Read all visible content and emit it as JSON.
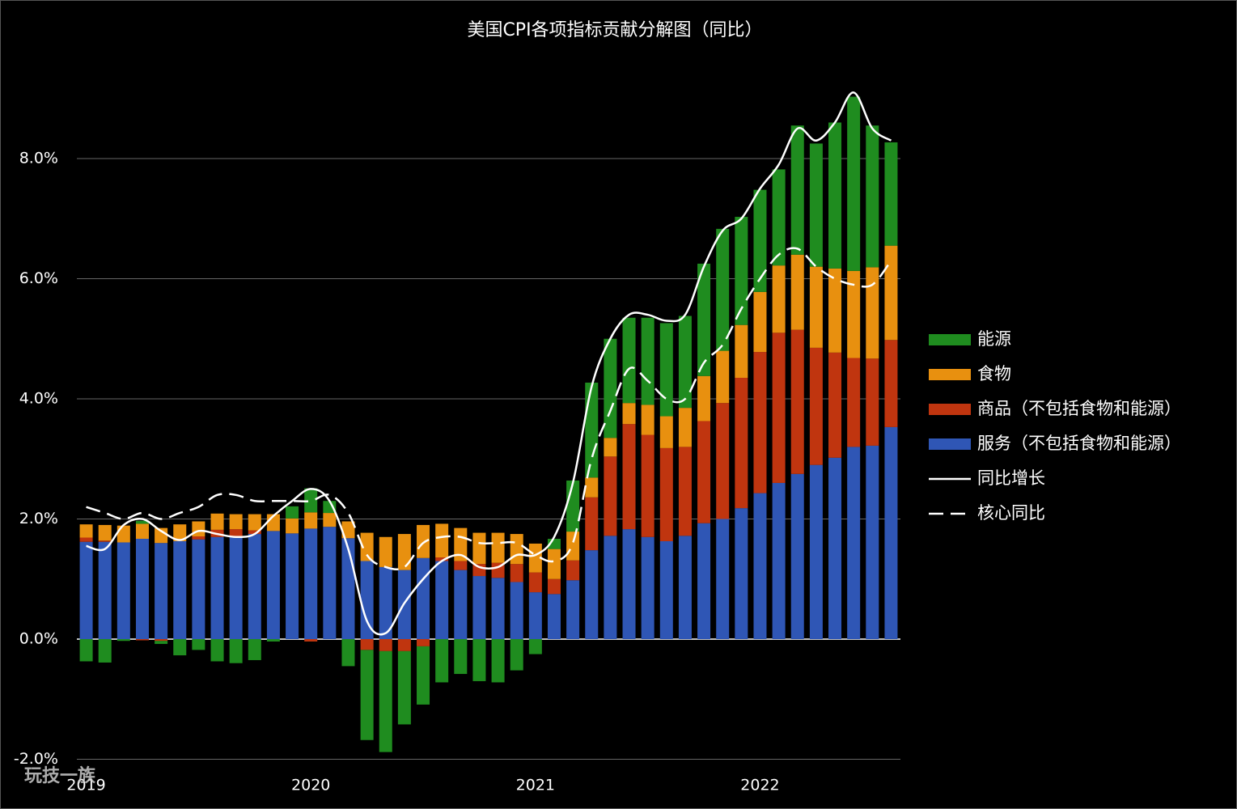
{
  "chart_data": {
    "type": "bar",
    "title": "美国CPI各项指标贡献分解图（同比）",
    "watermark": "玩技一族",
    "categories": [
      "2019",
      null,
      null,
      null,
      null,
      null,
      null,
      null,
      null,
      null,
      null,
      null,
      "2020",
      null,
      null,
      null,
      null,
      null,
      null,
      null,
      null,
      null,
      null,
      null,
      "2021",
      null,
      null,
      null,
      null,
      null,
      null,
      null,
      null,
      null,
      null,
      null,
      "2022",
      null,
      null,
      null,
      null,
      null,
      null,
      null
    ],
    "ylim": [
      -2,
      9.5
    ],
    "yticks": [
      {
        "value": -2,
        "label": "-2.0%"
      },
      {
        "value": 0,
        "label": "0.0%"
      },
      {
        "value": 2,
        "label": "2.0%"
      },
      {
        "value": 4,
        "label": "4.0%"
      },
      {
        "value": 6,
        "label": "6.0%"
      },
      {
        "value": 8,
        "label": "8.0%"
      }
    ],
    "grid": true,
    "legend": "right",
    "series": [
      {
        "name": "服务（不包括食物和能源）",
        "type": "bar",
        "color": "#2f56b5",
        "values": [
          1.62,
          1.62,
          1.61,
          1.67,
          1.6,
          1.63,
          1.66,
          1.7,
          1.7,
          1.75,
          1.8,
          1.76,
          1.84,
          1.87,
          1.68,
          1.3,
          1.2,
          1.15,
          1.35,
          1.3,
          1.15,
          1.05,
          1.02,
          0.95,
          0.78,
          0.75,
          0.98,
          1.48,
          1.72,
          1.83,
          1.7,
          1.63,
          1.72,
          1.93,
          2.0,
          2.18,
          2.43,
          2.6,
          2.75,
          2.9,
          3.02,
          3.2,
          3.22,
          3.53
        ]
      },
      {
        "name": "商品（不包括食物和能源）",
        "type": "bar",
        "color": "#c0350f",
        "values": [
          0.07,
          0.02,
          0.0,
          -0.02,
          -0.03,
          0.0,
          0.05,
          0.12,
          0.13,
          0.06,
          0.0,
          0.0,
          -0.04,
          0.0,
          0.0,
          -0.18,
          -0.2,
          -0.2,
          -0.12,
          0.06,
          0.15,
          0.2,
          0.25,
          0.3,
          0.33,
          0.25,
          0.33,
          0.88,
          1.32,
          1.75,
          1.7,
          1.55,
          1.48,
          1.7,
          1.93,
          2.17,
          2.35,
          2.5,
          2.4,
          1.95,
          1.75,
          1.48,
          1.45,
          1.45
        ]
      },
      {
        "name": "食物",
        "type": "bar",
        "color": "#e8900f",
        "values": [
          0.22,
          0.26,
          0.28,
          0.25,
          0.25,
          0.28,
          0.25,
          0.27,
          0.25,
          0.27,
          0.28,
          0.25,
          0.27,
          0.23,
          0.28,
          0.47,
          0.5,
          0.6,
          0.55,
          0.56,
          0.55,
          0.52,
          0.5,
          0.5,
          0.48,
          0.5,
          0.48,
          0.33,
          0.31,
          0.35,
          0.5,
          0.53,
          0.65,
          0.75,
          0.87,
          0.88,
          1.0,
          1.12,
          1.25,
          1.35,
          1.4,
          1.45,
          1.52,
          1.57
        ]
      },
      {
        "name": "能源",
        "type": "bar",
        "color": "#1f8c1f",
        "values": [
          -0.37,
          -0.39,
          -0.03,
          0.05,
          -0.05,
          -0.27,
          -0.18,
          -0.37,
          -0.4,
          -0.35,
          -0.04,
          0.2,
          0.4,
          0.2,
          -0.45,
          -1.5,
          -1.68,
          -1.22,
          -0.97,
          -0.72,
          -0.58,
          -0.7,
          -0.72,
          -0.52,
          -0.25,
          0.17,
          0.85,
          1.58,
          1.65,
          1.42,
          1.45,
          1.55,
          1.53,
          1.87,
          2.03,
          1.8,
          1.7,
          1.6,
          2.15,
          2.05,
          2.43,
          2.9,
          2.36,
          1.72
        ]
      },
      {
        "name": "同比增长",
        "type": "line",
        "color": "#ffffff",
        "dash": false,
        "values": [
          1.55,
          1.5,
          1.9,
          2.0,
          1.8,
          1.65,
          1.8,
          1.75,
          1.7,
          1.75,
          2.05,
          2.3,
          2.5,
          2.3,
          1.5,
          0.3,
          0.1,
          0.6,
          1.0,
          1.3,
          1.4,
          1.2,
          1.2,
          1.4,
          1.4,
          1.7,
          2.6,
          4.2,
          5.0,
          5.4,
          5.4,
          5.3,
          5.4,
          6.2,
          6.8,
          7.0,
          7.5,
          7.9,
          8.5,
          8.3,
          8.6,
          9.1,
          8.5,
          8.3
        ]
      },
      {
        "name": "核心同比",
        "type": "line",
        "color": "#ffffff",
        "dash": true,
        "values": [
          2.2,
          2.1,
          2.0,
          2.1,
          2.0,
          2.1,
          2.2,
          2.4,
          2.4,
          2.3,
          2.3,
          2.3,
          2.3,
          2.4,
          2.1,
          1.4,
          1.2,
          1.2,
          1.6,
          1.7,
          1.7,
          1.6,
          1.6,
          1.6,
          1.4,
          1.3,
          1.6,
          3.0,
          3.8,
          4.5,
          4.3,
          4.0,
          4.0,
          4.6,
          4.9,
          5.5,
          6.0,
          6.4,
          6.5,
          6.2,
          6.0,
          5.9,
          5.9,
          6.3
        ]
      }
    ]
  }
}
